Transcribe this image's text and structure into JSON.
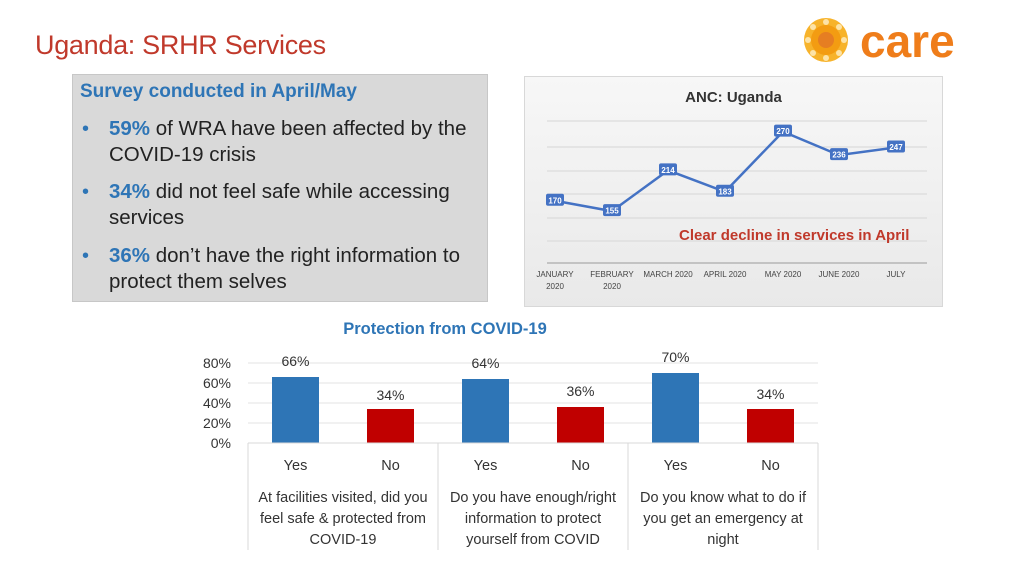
{
  "page": {
    "title": "Uganda: SRHR Services",
    "logo_text": "care"
  },
  "survey": {
    "heading": "Survey conducted in April/May",
    "items": [
      {
        "pct": "59%",
        "text": " of WRA have been affected by the COVID-19 crisis"
      },
      {
        "pct": "34%",
        "text": " did not feel safe while accessing services"
      },
      {
        "pct": "36%",
        "text": " don’t have the right information to protect them selves"
      }
    ]
  },
  "colors": {
    "title": "#c0392b",
    "accent_blue": "#2e75b6",
    "bar_yes": "#2e75b6",
    "bar_no": "#c00000",
    "line": "#4472c4",
    "note": "#c0392b"
  },
  "chart_data": [
    {
      "type": "line",
      "title": "ANC: Uganda",
      "annotation": "Clear decline in services in April",
      "categories": [
        "JANUARY 2020",
        "FEBRUARY 2020",
        "MARCH 2020",
        "APRIL 2020",
        "MAY 2020",
        "JUNE 2020",
        "JULY"
      ],
      "values": [
        170,
        155,
        214,
        183,
        270,
        236,
        247
      ],
      "ylim": [
        80,
        320
      ],
      "grid": true,
      "data_labels": true
    },
    {
      "type": "bar",
      "title": "Protection from COVID-19",
      "groups": [
        "At facilities visited, did you feel safe & protected from COVID-19",
        "Do you have enough/right information to protect yourself from COVID",
        "Do you know what to do if you get an emergency at night"
      ],
      "categories": [
        "Yes",
        "No",
        "Yes",
        "No",
        "Yes",
        "No"
      ],
      "values": [
        66,
        34,
        64,
        36,
        70,
        34
      ],
      "value_labels": [
        "66%",
        "34%",
        "64%",
        "36%",
        "70%",
        "34%"
      ],
      "y_ticks": [
        "80%",
        "60%",
        "40%",
        "20%",
        "0%"
      ],
      "ylim": [
        0,
        80
      ],
      "grid": true
    }
  ]
}
